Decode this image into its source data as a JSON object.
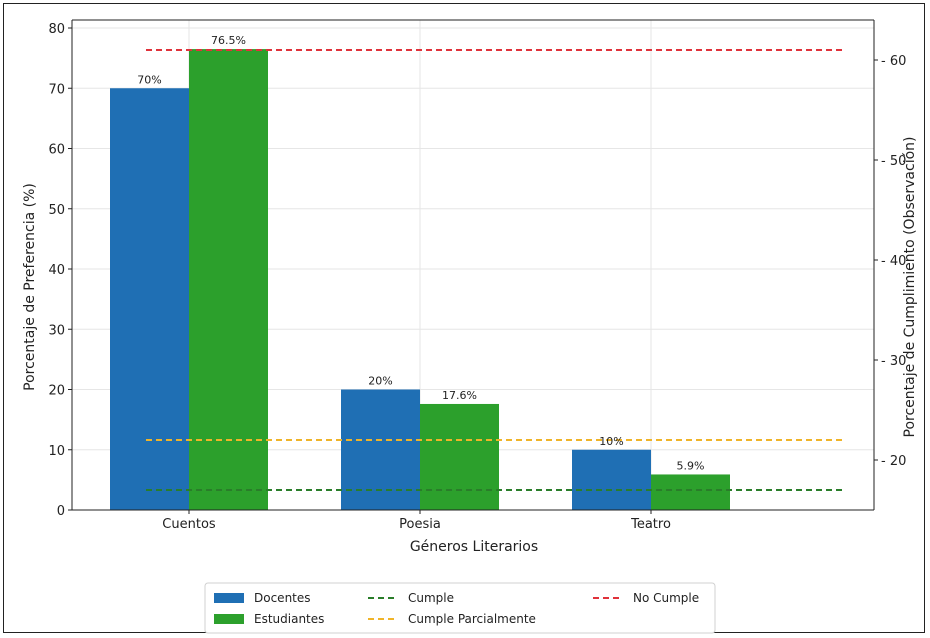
{
  "chart_data": {
    "type": "bar",
    "categories": [
      "Cuentos",
      "Poesia",
      "Teatro"
    ],
    "series": [
      {
        "name": "Docentes",
        "values": [
          70,
          20,
          10
        ],
        "labels": [
          "70%",
          "20%",
          "10%"
        ],
        "color": "#1f6fb4"
      },
      {
        "name": "Estudiantes",
        "values": [
          76.5,
          17.6,
          5.9
        ],
        "labels": [
          "76.5%",
          "17.6%",
          "5.9%"
        ],
        "color": "#2ca02c"
      }
    ],
    "reference_lines": [
      {
        "name": "Cumple",
        "value": 17,
        "axis": "right",
        "color": "#2a7d2a"
      },
      {
        "name": "Cumple Parcialmente",
        "value": 22,
        "axis": "right",
        "color": "#f0b429"
      },
      {
        "name": "No Cumple",
        "value": 61,
        "axis": "right",
        "color": "#e0323b"
      }
    ],
    "xlabel": "Géneros Literarios",
    "ylabel": "Porcentaje de Preferencia (%)",
    "y2label": "Porcentaje de Cumplimiento (Observación)",
    "ylim": [
      0,
      80
    ],
    "yticks": [
      0,
      10,
      20,
      30,
      40,
      50,
      60,
      70,
      80
    ],
    "y2lim": [
      15,
      64
    ],
    "y2ticks": [
      20,
      30,
      40,
      50,
      60
    ],
    "grid": true,
    "legend_position": "bottom-center"
  }
}
